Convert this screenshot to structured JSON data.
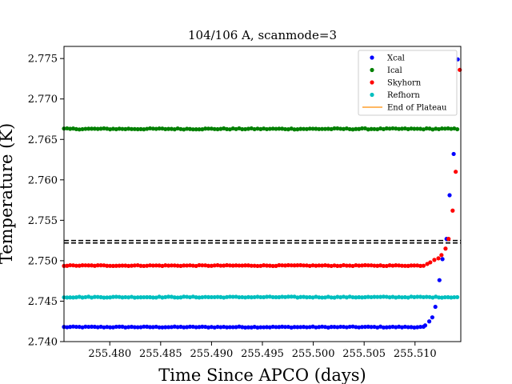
{
  "chart_data": {
    "type": "scatter",
    "title": "104/106 A, scanmode=3",
    "xlabel": "Time Since APCO (days)",
    "ylabel": "Temperature (K)",
    "xlim": [
      255.4755,
      255.5145
    ],
    "ylim": [
      2.74,
      2.7765
    ],
    "x_ticks": [
      255.48,
      255.485,
      255.49,
      255.495,
      255.5,
      255.505,
      255.51
    ],
    "x_tick_labels": [
      "255.480",
      "255.485",
      "255.490",
      "255.495",
      "255.500",
      "255.505",
      "255.510"
    ],
    "y_ticks": [
      2.74,
      2.745,
      2.75,
      2.755,
      2.76,
      2.765,
      2.77,
      2.775
    ],
    "y_tick_labels": [
      "2.740",
      "2.745",
      "2.750",
      "2.755",
      "2.760",
      "2.765",
      "2.770",
      "2.775"
    ],
    "grid": false,
    "legend_position": "top-right",
    "legend": [
      {
        "name": "Xcal",
        "color": "#0000ff",
        "marker": "dot"
      },
      {
        "name": "Ical",
        "color": "#008000",
        "marker": "dot"
      },
      {
        "name": "Skyhorn",
        "color": "#ff0000",
        "marker": "dot"
      },
      {
        "name": "Refhorn",
        "color": "#00bfbf",
        "marker": "dot"
      },
      {
        "name": "End of Plateau",
        "color": "#ff9f2e",
        "marker": "line"
      }
    ],
    "reference_lines": [
      {
        "y": 2.7525,
        "style": "dashed",
        "color": "#000000"
      },
      {
        "y": 2.7522,
        "style": "dashed",
        "color": "#000000"
      }
    ],
    "x_start": 255.4755,
    "x_step": 0.000302,
    "series": [
      {
        "name": "Xcal",
        "color": "#0000ff",
        "base": 2.7418,
        "noise": 6e-05,
        "ramp": [
          {
            "x": 255.511,
            "y": 2.742
          },
          {
            "x": 255.5114,
            "y": 2.7425
          },
          {
            "x": 255.5117,
            "y": 2.743
          },
          {
            "x": 255.512,
            "y": 2.7443
          },
          {
            "x": 255.5124,
            "y": 2.7476
          },
          {
            "x": 255.5127,
            "y": 2.7502
          },
          {
            "x": 255.5131,
            "y": 2.7527
          },
          {
            "x": 255.5134,
            "y": 2.7581
          },
          {
            "x": 255.5138,
            "y": 2.7632
          },
          {
            "x": 255.5142,
            "y": 2.7749
          }
        ]
      },
      {
        "name": "Ical",
        "color": "#008000",
        "base": 2.7663,
        "noise": 7e-05,
        "ramp": []
      },
      {
        "name": "Skyhorn",
        "color": "#ff0000",
        "base": 2.7494,
        "noise": 5e-05,
        "ramp": [
          {
            "x": 255.5112,
            "y": 2.7496
          },
          {
            "x": 255.5115,
            "y": 2.7498
          },
          {
            "x": 255.5119,
            "y": 2.7501
          },
          {
            "x": 255.5123,
            "y": 2.7503
          },
          {
            "x": 255.5126,
            "y": 2.7507
          },
          {
            "x": 255.513,
            "y": 2.7515
          },
          {
            "x": 255.5133,
            "y": 2.7527
          },
          {
            "x": 255.5137,
            "y": 2.7562
          },
          {
            "x": 255.514,
            "y": 2.761
          },
          {
            "x": 255.5144,
            "y": 2.7736
          }
        ]
      },
      {
        "name": "Refhorn",
        "color": "#00bfbf",
        "base": 2.7455,
        "noise": 6e-05,
        "ramp": []
      }
    ]
  }
}
